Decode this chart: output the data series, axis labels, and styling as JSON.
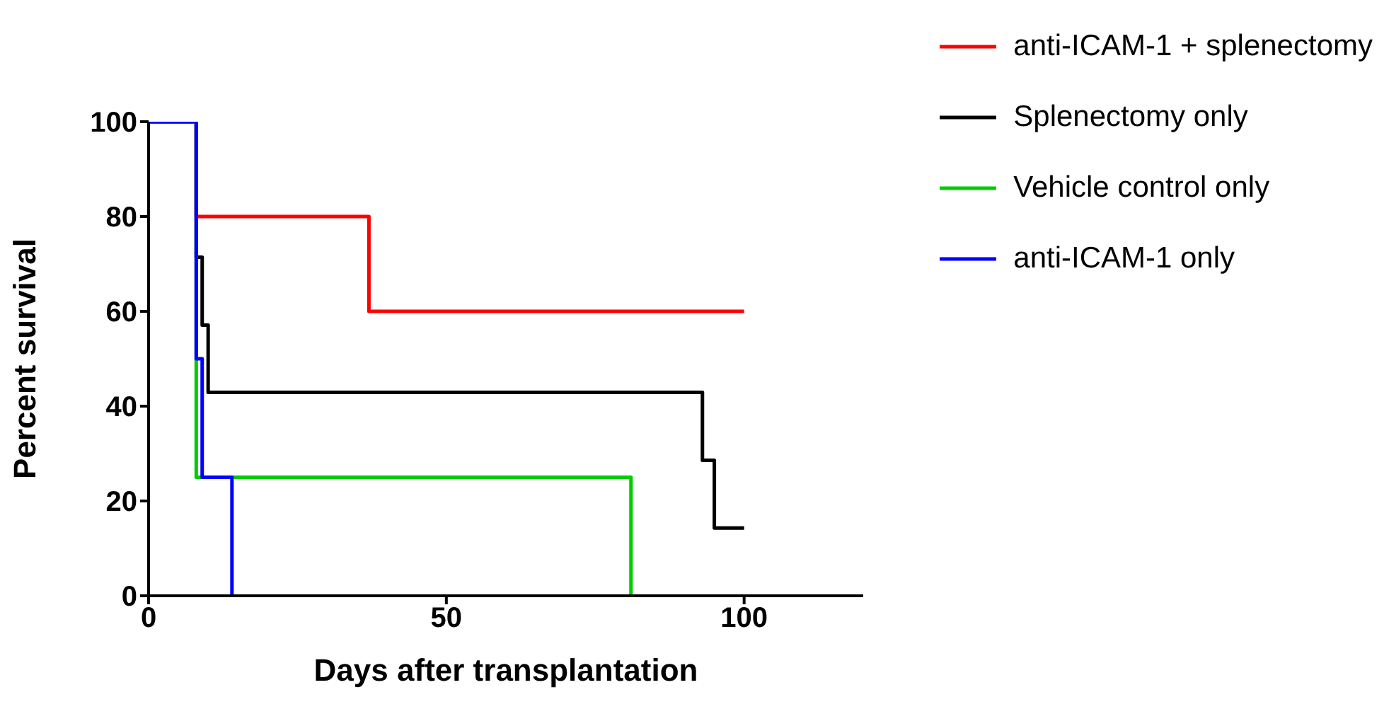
{
  "chart_data": {
    "type": "step",
    "xlabel": "Days after transplantation",
    "ylabel": "Percent survival",
    "xlim": [
      0,
      120
    ],
    "xticks": [
      0,
      50,
      100
    ],
    "ylim": [
      0,
      100
    ],
    "yticks": [
      0,
      20,
      40,
      60,
      80,
      100
    ],
    "legend": "top right",
    "marker": "none",
    "line_style": "solid",
    "series": [
      {
        "name": "anti-ICAM-1 + splenectomy",
        "color": "#ff0000",
        "x": [
          0,
          8,
          37,
          100
        ],
        "values": [
          100,
          80,
          60,
          60
        ]
      },
      {
        "name": "Splenectomy only",
        "color": "#000000",
        "x": [
          0,
          8,
          9,
          10,
          93,
          95,
          100
        ],
        "values": [
          100,
          71.4,
          57.1,
          42.9,
          28.6,
          14.3,
          14.3
        ]
      },
      {
        "name": "Vehicle control only",
        "color": "#00cc00",
        "x": [
          0,
          8,
          81
        ],
        "values": [
          100,
          25,
          0
        ]
      },
      {
        "name": "anti-ICAM-1 only",
        "color": "#0000ff",
        "x": [
          0,
          8,
          9,
          14
        ],
        "values": [
          100,
          50,
          25,
          0
        ]
      }
    ]
  }
}
